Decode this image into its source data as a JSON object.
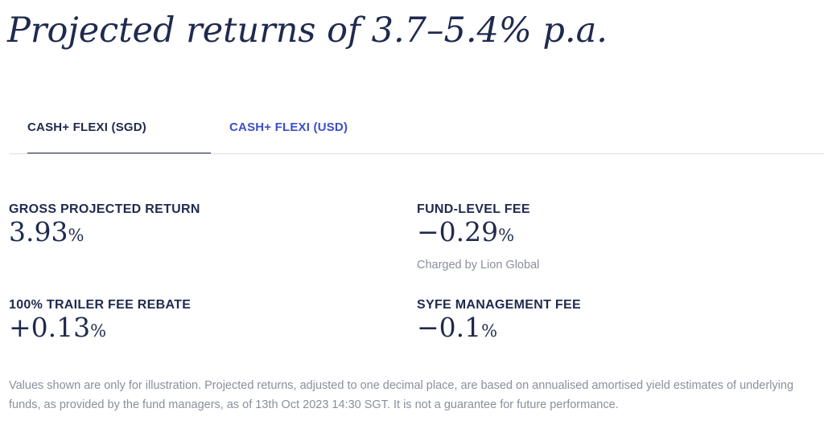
{
  "header": {
    "title": "Projected returns of 3.7–5.4% p.a."
  },
  "tabs": [
    {
      "label": "CASH+ FLEXI (SGD)",
      "active": true
    },
    {
      "label": "CASH+ FLEXI (USD)",
      "active": false
    }
  ],
  "metrics": {
    "gross": {
      "label": "GROSS PROJECTED RETURN",
      "value": "3.93",
      "unit": "%"
    },
    "fund_fee": {
      "label": "FUND-LEVEL FEE",
      "value": "−0.29",
      "unit": "%",
      "note": "Charged by Lion Global"
    },
    "trailer": {
      "label": "100% TRAILER FEE REBATE",
      "value": "+0.13",
      "unit": "%"
    },
    "syfe_fee": {
      "label": "SYFE MANAGEMENT FEE",
      "value": "−0.1",
      "unit": "%"
    }
  },
  "disclaimer": "Values shown are only for illustration. Projected returns, adjusted to one decimal place, are based on annualised amortised yield estimates of underlying funds, as provided by the fund managers, as of 13th Oct 2023 14:30 SGT. It is not a guarantee for future performance.",
  "colors": {
    "navy": "#1f2a4e",
    "accent_blue": "#3b4fc8",
    "muted_gray": "#8a8f9c",
    "divider": "#dcdfe6"
  }
}
